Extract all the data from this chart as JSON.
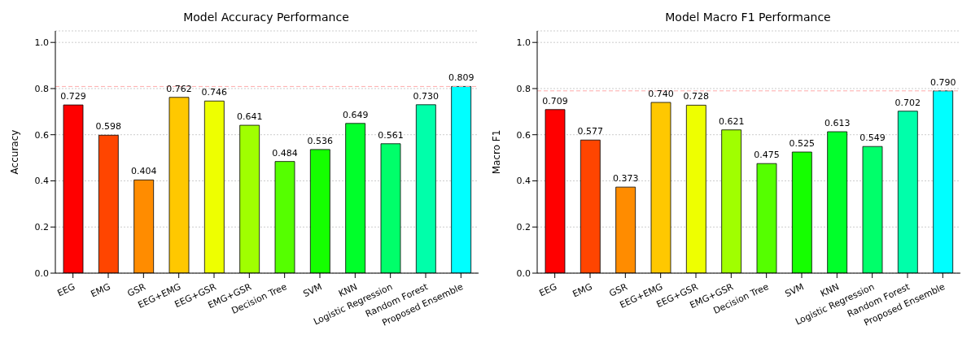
{
  "chart_data": [
    {
      "type": "bar",
      "title": "Model Accuracy Performance",
      "ylabel": "Accuracy",
      "categories": [
        "EEG",
        "EMG",
        "GSR",
        "EEG+EMG",
        "EEG+GSR",
        "EMG+GSR",
        "Decision Tree",
        "SVM",
        "KNN",
        "Logistic Regression",
        "Random Forest",
        "Proposed Ensemble"
      ],
      "values": [
        0.729,
        0.598,
        0.404,
        0.762,
        0.746,
        0.641,
        0.484,
        0.536,
        0.649,
        0.561,
        0.73,
        0.809
      ],
      "value_labels": [
        "0.729",
        "0.598",
        "0.404",
        "0.762",
        "0.746",
        "0.641",
        "0.484",
        "0.536",
        "0.649",
        "0.561",
        "0.730",
        "0.809"
      ],
      "colors": [
        "#ff0000",
        "#ff4500",
        "#ff8c00",
        "#ffc800",
        "#eeff00",
        "#a0ff00",
        "#55ff00",
        "#15ff00",
        "#00ff2a",
        "#00ff6a",
        "#00ffaa",
        "#00ffff"
      ],
      "ylim": [
        0,
        1.05
      ],
      "yticks": [
        {
          "value": 0,
          "label": "0.0"
        },
        {
          "value": 0.2,
          "label": "0.2"
        },
        {
          "value": 0.4,
          "label": "0.4"
        },
        {
          "value": 0.6,
          "label": "0.6"
        },
        {
          "value": 0.8,
          "label": "0.8"
        },
        {
          "value": 1,
          "label": "1.0"
        }
      ],
      "grid": "y",
      "ref_lines": [
        {
          "axis": "y",
          "value": 0.809,
          "color": "#ffaaaa",
          "line_style": "dashed"
        }
      ]
    },
    {
      "type": "bar",
      "title": "Model Macro F1 Performance",
      "ylabel": "Macro F1",
      "categories": [
        "EEG",
        "EMG",
        "GSR",
        "EEG+EMG",
        "EEG+GSR",
        "EMG+GSR",
        "Decision Tree",
        "SVM",
        "KNN",
        "Logistic Regression",
        "Random Forest",
        "Proposed Ensemble"
      ],
      "values": [
        0.709,
        0.577,
        0.373,
        0.74,
        0.728,
        0.621,
        0.475,
        0.525,
        0.613,
        0.549,
        0.702,
        0.79
      ],
      "value_labels": [
        "0.709",
        "0.577",
        "0.373",
        "0.740",
        "0.728",
        "0.621",
        "0.475",
        "0.525",
        "0.613",
        "0.549",
        "0.702",
        "0.790"
      ],
      "colors": [
        "#ff0000",
        "#ff4500",
        "#ff8c00",
        "#ffc800",
        "#eeff00",
        "#a0ff00",
        "#55ff00",
        "#15ff00",
        "#00ff2a",
        "#00ff6a",
        "#00ffaa",
        "#00ffff"
      ],
      "ylim": [
        0,
        1.05
      ],
      "yticks": [
        {
          "value": 0,
          "label": "0.0"
        },
        {
          "value": 0.2,
          "label": "0.2"
        },
        {
          "value": 0.4,
          "label": "0.4"
        },
        {
          "value": 0.6,
          "label": "0.6"
        },
        {
          "value": 0.8,
          "label": "0.8"
        },
        {
          "value": 1,
          "label": "1.0"
        }
      ],
      "grid": "y",
      "ref_lines": [
        {
          "axis": "y",
          "value": 0.79,
          "color": "#ffaaaa",
          "line_style": "dashed"
        }
      ]
    }
  ]
}
